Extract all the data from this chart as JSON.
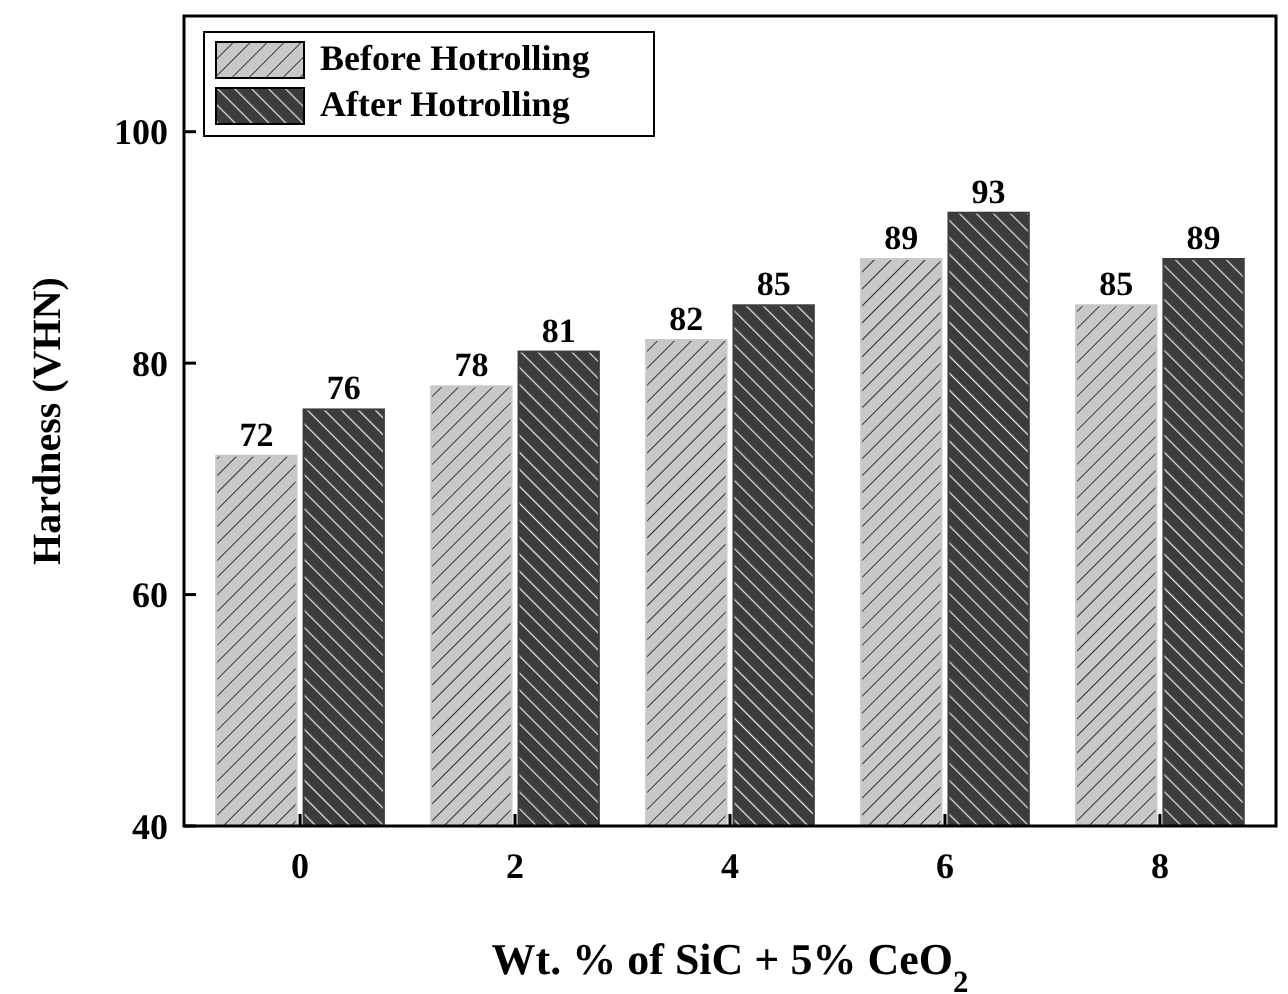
{
  "chart_data": {
    "type": "bar",
    "xlabel": "Wt. % of SiC + 5% CeO$_{2}$",
    "ylabel": "Hardness (VHN)",
    "categories": [
      "0",
      "2",
      "4",
      "6",
      "8"
    ],
    "series": [
      {
        "name": "Before Hotrolling",
        "color": "#c8c8c8",
        "values": [
          72,
          78,
          82,
          89,
          85
        ]
      },
      {
        "name": "After Hotrolling",
        "color": "#3c3c3c",
        "values": [
          76,
          81,
          85,
          93,
          89
        ]
      }
    ],
    "ylim": [
      40,
      110
    ],
    "yticks": [
      40,
      60,
      80,
      100
    ],
    "data_labels": true,
    "legend": "top left",
    "grid": false
  }
}
